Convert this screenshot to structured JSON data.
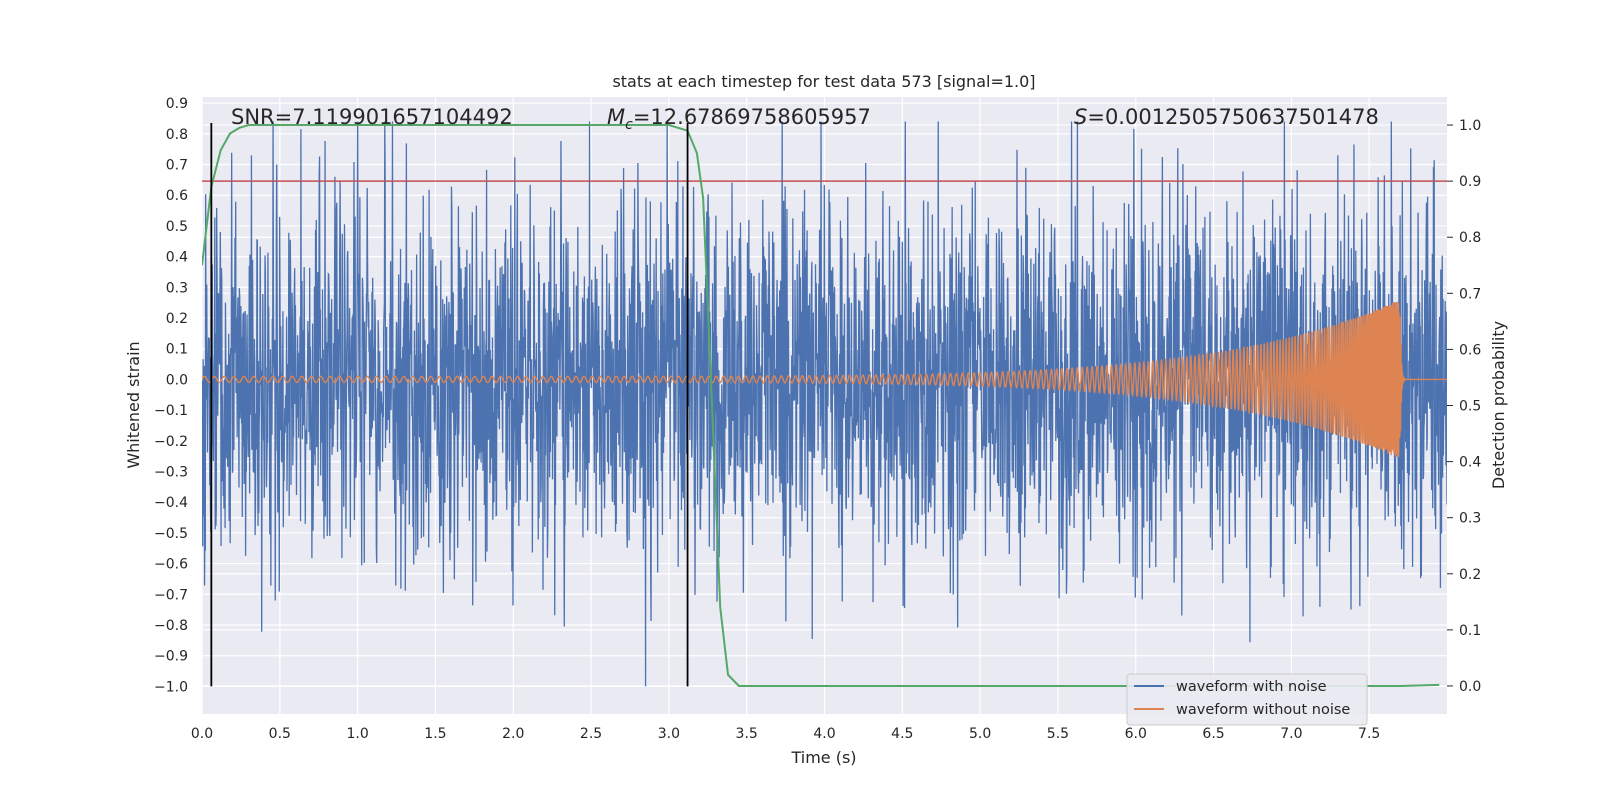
{
  "chart_data": {
    "type": "line",
    "title": "stats at each timestep for test data 573 [signal=1.0]",
    "xlabel": "Time (s)",
    "ylabel": "Whitened strain",
    "ylabel_right": "Detection probability",
    "xlim": [
      0.0,
      8.0
    ],
    "ylim": [
      -1.09,
      0.92
    ],
    "ylim_right": [
      -0.05,
      1.05
    ],
    "grid": true,
    "x_ticks": [
      0.0,
      0.5,
      1.0,
      1.5,
      2.0,
      2.5,
      3.0,
      3.5,
      4.0,
      4.5,
      5.0,
      5.5,
      6.0,
      6.5,
      7.0,
      7.5
    ],
    "x_tick_labels": [
      "0.0",
      "0.5",
      "1.0",
      "1.5",
      "2.0",
      "2.5",
      "3.0",
      "3.5",
      "4.0",
      "4.5",
      "5.0",
      "5.5",
      "6.0",
      "6.5",
      "7.0",
      "7.5"
    ],
    "y_ticks": [
      0.9,
      0.8,
      0.7,
      0.6,
      0.5,
      0.4,
      0.3,
      0.2,
      0.1,
      0.0,
      -0.1,
      -0.2,
      -0.3,
      -0.4,
      -0.5,
      -0.6,
      -0.7,
      -0.8,
      -0.9,
      -1.0
    ],
    "y_tick_labels": [
      "0.9",
      "0.8",
      "0.7",
      "0.6",
      "0.5",
      "0.4",
      "0.3",
      "0.2",
      "0.1",
      "0.0",
      "−0.1",
      "−0.2",
      "−0.3",
      "−0.4",
      "−0.5",
      "−0.6",
      "−0.7",
      "−0.8",
      "−0.9",
      "−1.0"
    ],
    "y_right_ticks": [
      1.0,
      0.9,
      0.8,
      0.7,
      0.6,
      0.5,
      0.4,
      0.3,
      0.2,
      0.1,
      0.0
    ],
    "y_right_tick_labels": [
      "1.0",
      "0.9",
      "0.8",
      "0.7",
      "0.6",
      "0.5",
      "0.4",
      "0.3",
      "0.2",
      "0.1",
      "0.0"
    ],
    "annotations": {
      "snr": "SNR=7.119901657104492",
      "mc_symbol": "M",
      "mc_subscript": "c",
      "mc_value": "=12.67869758605957",
      "s_symbol": "S",
      "s_value": "=0.0012505750637501478"
    },
    "vertical_lines_x": [
      0.06,
      3.12
    ],
    "threshold_prob": 0.9,
    "noise_stats": {
      "approx_amplitude": 0.3,
      "peak_max": 0.84,
      "peak_min": -1.0
    },
    "clean_signal": {
      "start_amplitude": 0.01,
      "peak_amplitude": 0.26,
      "merger_time": 7.7,
      "start_period": 0.064,
      "end_period": 0.0025
    },
    "probability_series": {
      "x": [
        0.0,
        0.06,
        0.12,
        0.18,
        0.24,
        0.3,
        0.4,
        0.6,
        1.0,
        1.5,
        2.0,
        2.5,
        3.0,
        3.12,
        3.18,
        3.22,
        3.27,
        3.33,
        3.38,
        3.45,
        3.6,
        4.0,
        5.0,
        6.0,
        7.0,
        7.7,
        7.95
      ],
      "y": [
        0.75,
        0.89,
        0.955,
        0.985,
        0.995,
        1.0,
        1.0,
        1.0,
        1.0,
        1.0,
        1.0,
        1.0,
        1.0,
        0.99,
        0.95,
        0.87,
        0.55,
        0.14,
        0.02,
        0.0,
        0.0,
        0.0,
        0.0,
        0.0,
        0.0,
        0.0,
        0.002
      ]
    },
    "series": [
      {
        "name": "waveform with noise",
        "color": "#4c72b0"
      },
      {
        "name": "waveform without noise",
        "color": "#dd8452"
      },
      {
        "name": "detection probability",
        "color": "#55a868"
      }
    ],
    "threshold_color": "#c44e52",
    "legend_position": "lower-right"
  }
}
